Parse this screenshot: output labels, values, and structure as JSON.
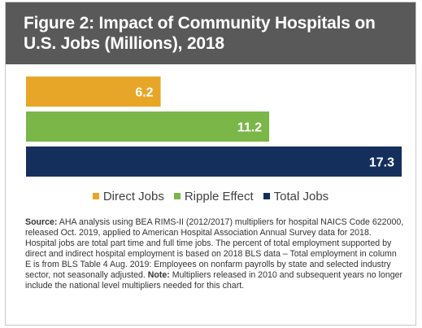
{
  "header": {
    "title": "Figure 2: Impact of Community Hospitals on U.S. Jobs (Millions), 2018"
  },
  "chart_data": {
    "type": "bar",
    "orientation": "horizontal",
    "title": "Figure 2: Impact of Community Hospitals on U.S. Jobs (Millions), 2018",
    "xlabel": "",
    "ylabel": "",
    "xlim": [
      0,
      17.3
    ],
    "grid": false,
    "legend_position": "bottom",
    "series": [
      {
        "name": "Direct Jobs",
        "value": 6.2,
        "label": "6.2",
        "color": "#e8a628"
      },
      {
        "name": "Ripple Effect",
        "value": 11.2,
        "label": "11.2",
        "color": "#7ab648"
      },
      {
        "name": "Total Jobs",
        "value": 17.3,
        "label": "17.3",
        "color": "#152f5c"
      }
    ]
  },
  "note": {
    "source_label": "Source:",
    "source_text": " AHA analysis using BEA RIMS-II (2012/2017) multipliers for hospital NAICS Code 622000, released Oct. 2019, applied to American Hospital Association Annual Survey data for 2018. Hospital jobs are total part time and full time jobs. The percent of total employment supported by direct and indirect hospital employment is based on 2018 BLS data – Total employment in column E is from BLS Table 4 Aug. 2019: Employees on nonfarm payrolls by state and selected industry sector, not seasonally adjusted. ",
    "note_label": "Note:",
    "note_text": " Multipliers released in 2010 and subsequent years no longer include the national level multipliers needed for this chart."
  }
}
